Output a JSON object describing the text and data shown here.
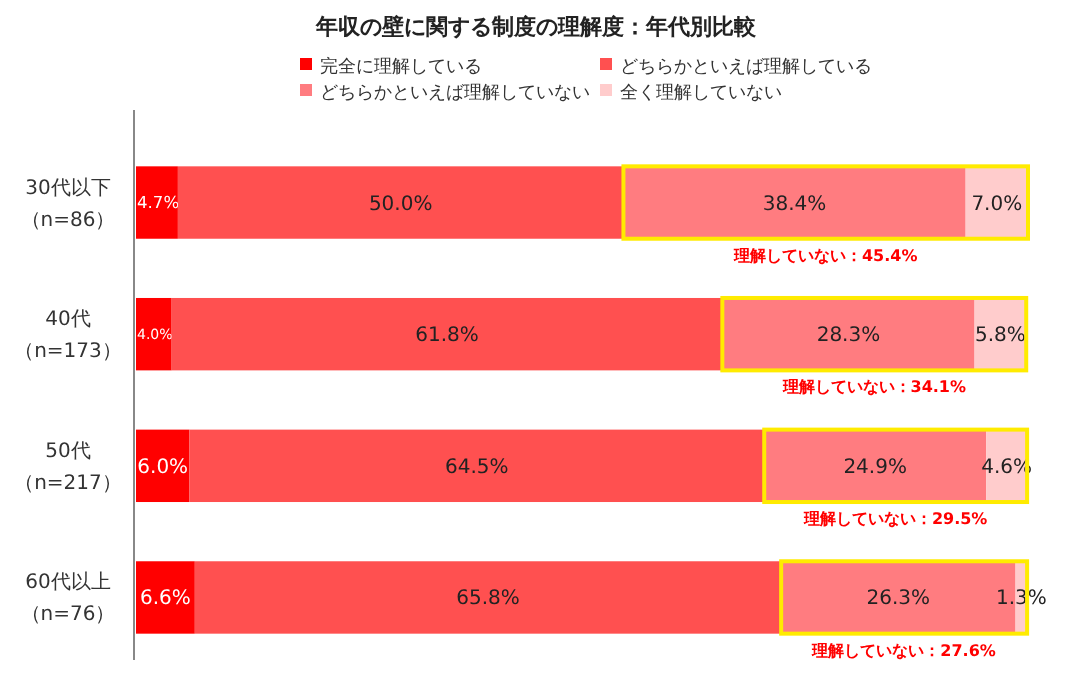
{
  "chart_data": {
    "type": "bar",
    "orientation": "horizontal",
    "stacked": true,
    "legend": "top",
    "title": "年収の壁に関する制度の理解度：年代別比較",
    "categories": [
      "30代以下（n=86）",
      "40代（n=173）",
      "50代（n=217）",
      "60代以上（n=76）"
    ],
    "series": [
      {
        "name": "完全に理解している",
        "color": "#ff0000",
        "values": [
          4.7,
          4.0,
          6.0,
          6.6
        ],
        "value_labels": [
          "4.7%",
          "4.0%",
          "6.0%",
          "6.6%"
        ]
      },
      {
        "name": "どちらかといえば理解している",
        "color": "#ff5050",
        "values": [
          50.0,
          61.8,
          64.5,
          65.8
        ],
        "value_labels": [
          "50.0%",
          "61.8%",
          "64.5%",
          "65.8%"
        ]
      },
      {
        "name": "どちらかといえば理解していない",
        "color": "#ff7c80",
        "values": [
          38.4,
          28.3,
          24.9,
          26.3
        ],
        "value_labels": [
          "38.4%",
          "28.3%",
          "24.9%",
          "26.3%"
        ]
      },
      {
        "name": "全く理解していない",
        "color": "#ffcccc",
        "values": [
          7.0,
          5.8,
          4.6,
          1.3
        ],
        "value_labels": [
          "7.0%",
          "5.8%",
          "4.6%",
          "1.3%"
        ]
      }
    ],
    "annotations": [
      "理解していない：45.4%",
      "理解していない：34.1%",
      "理解していない：29.5%",
      "理解していない：27.6%"
    ]
  }
}
